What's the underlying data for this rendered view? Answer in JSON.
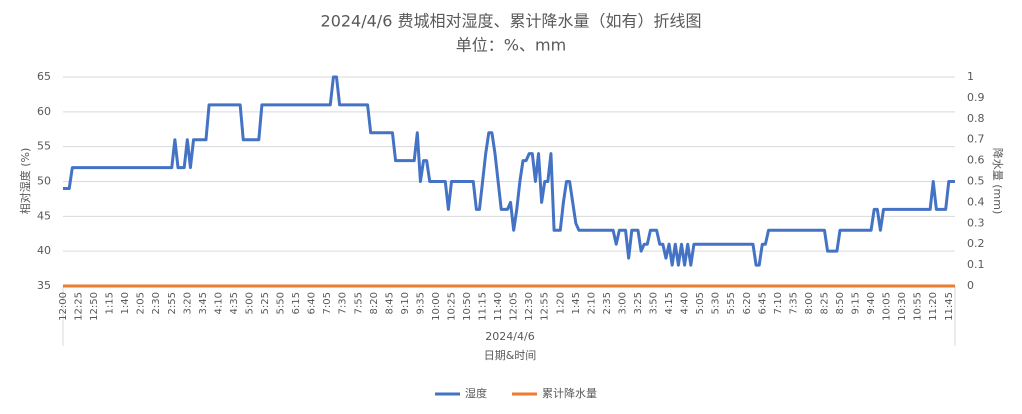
{
  "chart_data": {
    "type": "line",
    "title": "2024/4/6 费城相对湿度、累计降水量（如有）折线图",
    "subtitle": "单位：%、mm",
    "y_label": "相对湿度 (%)",
    "y2_label": "降水量 (mm)",
    "x_label": "日期&时间",
    "x_group_label": "2024/4/6",
    "categories": [
      "12:00",
      null,
      null,
      null,
      null,
      "12:25",
      null,
      null,
      null,
      null,
      "12:50",
      null,
      null,
      null,
      null,
      "1:15",
      null,
      null,
      null,
      null,
      "1:40",
      null,
      null,
      null,
      null,
      "2:05",
      null,
      null,
      null,
      null,
      "2:30",
      null,
      null,
      null,
      null,
      "2:55",
      null,
      null,
      null,
      null,
      "3:20",
      null,
      null,
      null,
      null,
      "3:45",
      null,
      null,
      null,
      null,
      "4:10",
      null,
      null,
      null,
      null,
      "4:35",
      null,
      null,
      null,
      null,
      "5:00",
      null,
      null,
      null,
      null,
      "5:25",
      null,
      null,
      null,
      null,
      "5:50",
      null,
      null,
      null,
      null,
      "6:15",
      null,
      null,
      null,
      null,
      "6:40",
      null,
      null,
      null,
      null,
      "7:05",
      null,
      null,
      null,
      null,
      "7:30",
      null,
      null,
      null,
      null,
      "7:55",
      null,
      null,
      null,
      null,
      "8:20",
      null,
      null,
      null,
      null,
      "8:45",
      null,
      null,
      null,
      null,
      "9:10",
      null,
      null,
      null,
      null,
      "9:35",
      null,
      null,
      null,
      null,
      "10:00",
      null,
      null,
      null,
      null,
      "10:25",
      null,
      null,
      null,
      null,
      "10:50",
      null,
      null,
      null,
      null,
      "11:15",
      null,
      null,
      null,
      null,
      "11:40",
      null,
      null,
      null,
      null,
      "12:05",
      null,
      null,
      null,
      null,
      "12:30",
      null,
      null,
      null,
      null,
      "12:55",
      null,
      null,
      null,
      null,
      "1:20",
      null,
      null,
      null,
      null,
      "1:45",
      null,
      null,
      null,
      null,
      "2:10",
      null,
      null,
      null,
      null,
      "2:35",
      null,
      null,
      null,
      null,
      "3:00",
      null,
      null,
      null,
      null,
      "3:25",
      null,
      null,
      null,
      null,
      "3:50",
      null,
      null,
      null,
      null,
      "4:15",
      null,
      null,
      null,
      null,
      "4:40",
      null,
      null,
      null,
      null,
      "5:05",
      null,
      null,
      null,
      null,
      "5:30",
      null,
      null,
      null,
      null,
      "5:55",
      null,
      null,
      null,
      null,
      "6:20",
      null,
      null,
      null,
      null,
      "6:45",
      null,
      null,
      null,
      null,
      "7:10",
      null,
      null,
      null,
      null,
      "7:35",
      null,
      null,
      null,
      null,
      "8:00",
      null,
      null,
      null,
      null,
      "8:25",
      null,
      null,
      null,
      null,
      "8:50",
      null,
      null,
      null,
      null,
      "9:15",
      null,
      null,
      null,
      null,
      "9:40",
      null,
      null,
      null,
      null,
      "10:05",
      null,
      null,
      null,
      null,
      "10:30",
      null,
      null,
      null,
      null,
      "10:55",
      null,
      null,
      null,
      null,
      "11:20",
      null,
      null,
      null,
      null,
      "11:45",
      null,
      null
    ],
    "series": [
      {
        "name": "湿度",
        "color": "#4472c4",
        "values": [
          49,
          49,
          49,
          52,
          52,
          52,
          52,
          52,
          52,
          52,
          52,
          52,
          52,
          52,
          52,
          52,
          52,
          52,
          52,
          52,
          52,
          52,
          52,
          52,
          52,
          52,
          52,
          52,
          52,
          52,
          52,
          52,
          52,
          52,
          52,
          52,
          56,
          52,
          52,
          52,
          56,
          52,
          56,
          56,
          56,
          56,
          56,
          61,
          61,
          61,
          61,
          61,
          61,
          61,
          61,
          61,
          61,
          61,
          56,
          56,
          56,
          56,
          56,
          56,
          61,
          61,
          61,
          61,
          61,
          61,
          61,
          61,
          61,
          61,
          61,
          61,
          61,
          61,
          61,
          61,
          61,
          61,
          61,
          61,
          61,
          61,
          61,
          65,
          65,
          61,
          61,
          61,
          61,
          61,
          61,
          61,
          61,
          61,
          61,
          57,
          57,
          57,
          57,
          57,
          57,
          57,
          57,
          53,
          53,
          53,
          53,
          53,
          53,
          53,
          57,
          50,
          53,
          53,
          50,
          50,
          50,
          50,
          50,
          50,
          46,
          50,
          50,
          50,
          50,
          50,
          50,
          50,
          50,
          46,
          46,
          50,
          54,
          57,
          57,
          54,
          50,
          46,
          46,
          46,
          47,
          43,
          46,
          50,
          53,
          53,
          54,
          54,
          50,
          54,
          47,
          50,
          50,
          54,
          43,
          43,
          43,
          47,
          50,
          50,
          47,
          44,
          43,
          43,
          43,
          43,
          43,
          43,
          43,
          43,
          43,
          43,
          43,
          43,
          41,
          43,
          43,
          43,
          39,
          43,
          43,
          43,
          40,
          41,
          41,
          43,
          43,
          43,
          41,
          41,
          39,
          41,
          38,
          41,
          38,
          41,
          38,
          41,
          38,
          41,
          41,
          41,
          41,
          41,
          41,
          41,
          41,
          41,
          41,
          41,
          41,
          41,
          41,
          41,
          41,
          41,
          41,
          41,
          41,
          38,
          38,
          41,
          41,
          43,
          43,
          43,
          43,
          43,
          43,
          43,
          43,
          43,
          43,
          43,
          43,
          43,
          43,
          43,
          43,
          43,
          43,
          43,
          40,
          40,
          40,
          40,
          43,
          43,
          43,
          43,
          43,
          43,
          43,
          43,
          43,
          43,
          43,
          46,
          46,
          43,
          46,
          46,
          46,
          46,
          46,
          46,
          46,
          46,
          46,
          46,
          46,
          46,
          46,
          46,
          46,
          46,
          50,
          46,
          46,
          46,
          46,
          50,
          50,
          50
        ]
      },
      {
        "name": "累计降水量",
        "color": "#ed7d31",
        "axis": "y2",
        "values": [
          0,
          0,
          0,
          0,
          0,
          0,
          0,
          0,
          0,
          0,
          0,
          0,
          0,
          0,
          0,
          0,
          0,
          0,
          0,
          0,
          0,
          0,
          0,
          0,
          0,
          0,
          0,
          0,
          0,
          0,
          0,
          0,
          0,
          0,
          0,
          0,
          0,
          0,
          0,
          0,
          0,
          0,
          0,
          0,
          0,
          0,
          0,
          0,
          0,
          0,
          0,
          0,
          0,
          0,
          0,
          0,
          0,
          0,
          0,
          0,
          0,
          0,
          0,
          0,
          0,
          0,
          0,
          0,
          0,
          0,
          0,
          0,
          0,
          0,
          0,
          0,
          0,
          0,
          0,
          0,
          0,
          0,
          0,
          0,
          0,
          0,
          0,
          0,
          0,
          0,
          0,
          0,
          0,
          0,
          0,
          0,
          0,
          0,
          0,
          0,
          0,
          0,
          0,
          0,
          0,
          0,
          0,
          0,
          0,
          0,
          0,
          0,
          0,
          0,
          0,
          0,
          0,
          0,
          0,
          0,
          0,
          0,
          0,
          0,
          0,
          0,
          0,
          0,
          0,
          0,
          0,
          0,
          0,
          0,
          0,
          0,
          0,
          0,
          0,
          0,
          0,
          0,
          0,
          0,
          0,
          0,
          0,
          0,
          0,
          0,
          0,
          0,
          0,
          0,
          0,
          0,
          0,
          0,
          0,
          0,
          0,
          0,
          0,
          0,
          0,
          0,
          0,
          0,
          0,
          0,
          0,
          0,
          0,
          0,
          0,
          0,
          0,
          0,
          0,
          0,
          0,
          0,
          0,
          0,
          0,
          0,
          0,
          0,
          0,
          0,
          0,
          0,
          0,
          0,
          0,
          0,
          0,
          0,
          0,
          0,
          0,
          0,
          0,
          0,
          0,
          0,
          0,
          0,
          0,
          0,
          0,
          0,
          0,
          0,
          0,
          0,
          0,
          0,
          0,
          0,
          0,
          0,
          0,
          0,
          0,
          0,
          0,
          0,
          0,
          0,
          0,
          0,
          0,
          0,
          0,
          0,
          0,
          0,
          0,
          0,
          0,
          0,
          0,
          0,
          0,
          0,
          0,
          0,
          0,
          0,
          0,
          0,
          0,
          0,
          0,
          0,
          0,
          0,
          0,
          0,
          0,
          0,
          0,
          0,
          0,
          0,
          0,
          0,
          0,
          0,
          0,
          0,
          0,
          0,
          0,
          0,
          0,
          0,
          0,
          0,
          0,
          0,
          0,
          0,
          0,
          0,
          0,
          0
        ]
      }
    ],
    "ylim": [
      35,
      65
    ],
    "yticks": [
      35,
      40,
      45,
      50,
      55,
      60,
      65
    ],
    "y2lim": [
      0,
      1
    ],
    "y2ticks": [
      0,
      0.1,
      0.2,
      0.3,
      0.4,
      0.5,
      0.6,
      0.7,
      0.8,
      0.9,
      1
    ],
    "grid": true,
    "legend": "bottom"
  }
}
